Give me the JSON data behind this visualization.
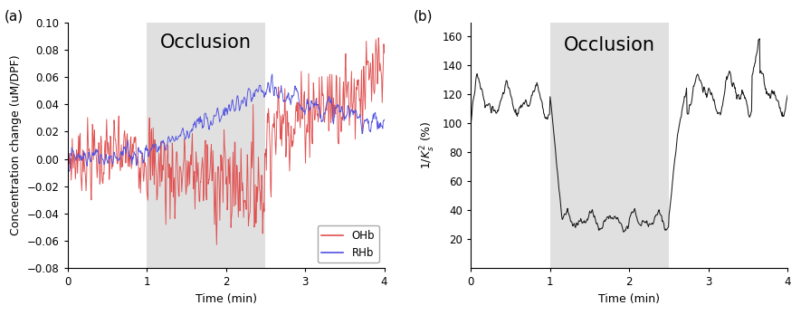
{
  "occlusion_start": 1.0,
  "occlusion_end": 2.5,
  "time_end": 4.0,
  "panel_a": {
    "xlabel": "Time (min)",
    "ylabel": "Concentration change (uM/DPF)",
    "occlusion_label": "Occlusion",
    "legend_OHb": "OHb",
    "legend_RHb": "RHb",
    "ohb_color": "#e05050",
    "rhb_color": "#5050e0",
    "ylim": [
      -0.08,
      0.1
    ],
    "yticks": [
      -0.08,
      -0.06,
      -0.04,
      -0.02,
      0.0,
      0.02,
      0.04,
      0.06,
      0.08,
      0.1
    ],
    "xlim": [
      0,
      4
    ],
    "xticks": [
      0,
      1,
      2,
      3,
      4
    ]
  },
  "panel_b": {
    "xlabel": "Time (min)",
    "ylabel": "1/K_s^2 (%)",
    "occlusion_label": "Occlusion",
    "line_color": "#1a1a1a",
    "ylim": [
      0,
      170
    ],
    "yticks": [
      20,
      40,
      60,
      80,
      100,
      120,
      140,
      160
    ],
    "xlim": [
      0,
      4
    ],
    "xticks": [
      0,
      1,
      2,
      3,
      4
    ]
  },
  "panel_a_label": "(a)",
  "panel_b_label": "(b)",
  "occlusion_color": "#e0e0e0",
  "background_color": "#ffffff",
  "fontsize_label": 9,
  "fontsize_occlusion": 15,
  "fontsize_panel": 11,
  "seed": 7
}
